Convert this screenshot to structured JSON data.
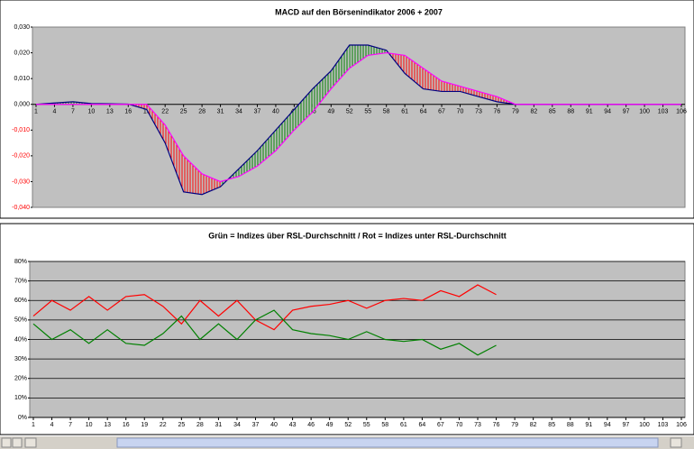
{
  "chart_data": [
    {
      "type": "line",
      "title": "MACD auf den Börsenindikator 2006 + 2007",
      "x": [
        1,
        4,
        7,
        10,
        13,
        16,
        19,
        22,
        25,
        28,
        31,
        34,
        37,
        40,
        43,
        46,
        49,
        52,
        55,
        58,
        61,
        64,
        67,
        70,
        73,
        76,
        79,
        82,
        85,
        88,
        91,
        94,
        97,
        100,
        103,
        106
      ],
      "xlim": [
        1,
        106
      ],
      "xticks": [
        1,
        4,
        7,
        10,
        13,
        16,
        19,
        22,
        25,
        28,
        31,
        34,
        37,
        40,
        43,
        46,
        49,
        52,
        55,
        58,
        61,
        64,
        67,
        70,
        73,
        76,
        79,
        82,
        85,
        88,
        91,
        94,
        97,
        100,
        103,
        106
      ],
      "ylim": [
        -0.04,
        0.03
      ],
      "yticks": [
        {
          "value": 0.03,
          "label": "0,030"
        },
        {
          "value": 0.02,
          "label": "0,020"
        },
        {
          "value": 0.01,
          "label": "0,010"
        },
        {
          "value": 0,
          "label": "0,000"
        },
        {
          "value": -0.01,
          "label": "-0,010"
        },
        {
          "value": -0.02,
          "label": "-0,020"
        },
        {
          "value": -0.03,
          "label": "-0,030"
        },
        {
          "value": -0.04,
          "label": "-0,040"
        }
      ],
      "grid": false,
      "negative_tick_color": "#ff0000",
      "fill_between": {
        "above": "#008000",
        "below": "#ff0000"
      },
      "series": [
        {
          "color": "#000080",
          "values": [
            0,
            0.0005,
            0.001,
            0.0003,
            0.0002,
            0.0001,
            -0.002,
            -0.015,
            -0.034,
            -0.035,
            -0.032,
            -0.025,
            -0.018,
            -0.01,
            -0.002,
            0.006,
            0.013,
            0.023,
            0.023,
            0.021,
            0.012,
            0.006,
            0.005,
            0.005,
            0.003,
            0.001,
            0,
            0,
            0,
            0,
            0,
            0,
            0,
            0,
            0,
            0
          ]
        },
        {
          "color": "#ff00ff",
          "values": [
            0,
            0,
            0,
            0,
            0,
            0,
            0,
            -0.008,
            -0.02,
            -0.027,
            -0.03,
            -0.028,
            -0.024,
            -0.018,
            -0.01,
            -0.003,
            0.006,
            0.014,
            0.019,
            0.02,
            0.019,
            0.014,
            0.009,
            0.007,
            0.005,
            0.003,
            0,
            0,
            0,
            0,
            0,
            0,
            0,
            0,
            0,
            0
          ]
        }
      ]
    },
    {
      "type": "line",
      "title": "Grün = Indizes über RSL-Durchschnitt / Rot = Indizes unter RSL-Durchschnitt",
      "x": [
        1,
        4,
        7,
        10,
        13,
        16,
        19,
        22,
        25,
        28,
        31,
        34,
        37,
        40,
        43,
        46,
        49,
        52,
        55,
        58,
        61,
        64,
        67,
        70,
        73,
        76,
        79,
        82,
        85,
        88,
        91,
        94,
        97,
        100,
        103,
        106
      ],
      "xlim": [
        1,
        106
      ],
      "xticks": [
        1,
        4,
        7,
        10,
        13,
        16,
        19,
        22,
        25,
        28,
        31,
        34,
        37,
        40,
        43,
        46,
        49,
        52,
        55,
        58,
        61,
        64,
        67,
        70,
        73,
        76,
        79,
        82,
        85,
        88,
        91,
        94,
        97,
        100,
        103,
        106
      ],
      "ylim": [
        0,
        80
      ],
      "yticks": [
        {
          "value": 80,
          "label": "80%"
        },
        {
          "value": 70,
          "label": "70%"
        },
        {
          "value": 60,
          "label": "60%"
        },
        {
          "value": 50,
          "label": "50%"
        },
        {
          "value": 40,
          "label": "40%"
        },
        {
          "value": 30,
          "label": "30%"
        },
        {
          "value": 20,
          "label": "20%"
        },
        {
          "value": 10,
          "label": "10%"
        },
        {
          "value": 0,
          "label": "0%"
        }
      ],
      "grid": true,
      "series": [
        {
          "color": "#ff0000",
          "values": [
            52,
            60,
            55,
            62,
            55,
            62,
            63,
            57,
            48,
            60,
            52,
            60,
            50,
            45,
            55,
            57,
            58,
            60,
            56,
            60,
            61,
            60,
            65,
            62,
            68,
            63,
            null,
            null,
            null,
            null,
            null,
            null,
            null,
            null,
            null,
            null
          ]
        },
        {
          "color": "#008000",
          "values": [
            48,
            40,
            45,
            38,
            45,
            38,
            37,
            43,
            52,
            40,
            48,
            40,
            50,
            55,
            45,
            43,
            42,
            40,
            44,
            40,
            39,
            40,
            35,
            38,
            32,
            37,
            null,
            null,
            null,
            null,
            null,
            null,
            null,
            null,
            null,
            null
          ]
        }
      ]
    }
  ]
}
